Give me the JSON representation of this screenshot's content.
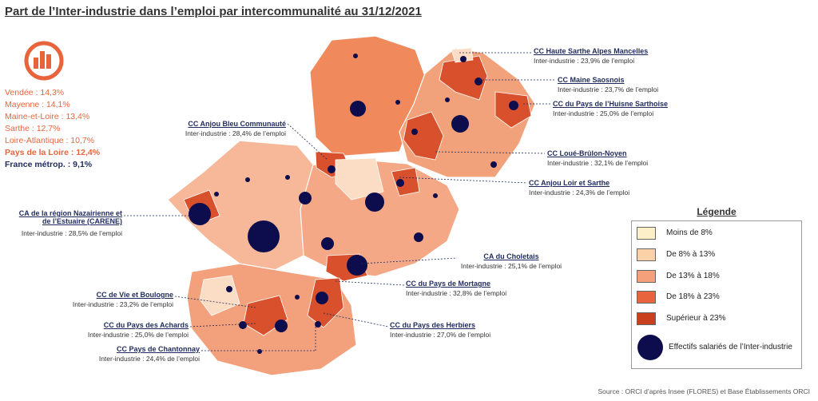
{
  "title": "Part de l’Inter-industrie dans l’emploi par intercommunalité au 31/12/2021",
  "stats": [
    "Vendée : 14,3%",
    "Mayenne : 14,1%",
    "Maine-et-Loire : 13,4%",
    "Sarthe : 12,7%",
    "Loire-Atlantique : 10,7%",
    "Pays de la Loire : 12,4%",
    "France métrop. : 9,1%"
  ],
  "callouts": [
    {
      "name": "CC Haute Sarthe Alpes Mancelles",
      "detail": "Inter-industrie : 23,9% de l’emploi"
    },
    {
      "name": "CC Maine Saosnois",
      "detail": "Inter-industrie : 23,7% de l’emploi"
    },
    {
      "name": "CC du Pays de l’Huisne Sarthoise",
      "detail": "Inter-industrie : 25,0% de l’emploi"
    },
    {
      "name": "CC Loué-Brûlon-Noyen",
      "detail": "Inter-industrie : 32,1% de l’emploi"
    },
    {
      "name": "CC Anjou Loir et Sarthe",
      "detail": "Inter-industrie : 24,3% de l’emploi"
    },
    {
      "name": "CC Anjou Bleu Communauté",
      "detail": "Inter-industrie : 28,4% de l’emploi"
    },
    {
      "name": "CA de la région Nazairienne et de l’Estuaire (CARENE)",
      "detail": "Inter-industrie : 28,5% de l’emploi"
    },
    {
      "name": "CA du Choletais",
      "detail": "Inter-industrie : 25,1% de l’emploi"
    },
    {
      "name": "CC du Pays de Mortagne",
      "detail": "Inter-industrie : 32,8% de l’emploi"
    },
    {
      "name": "CC de Vie et Boulogne",
      "detail": "Inter-industrie : 23,2% de l’emploi"
    },
    {
      "name": "CC du Pays des Achards",
      "detail": "Inter-industrie : 25,0% de l’emploi"
    },
    {
      "name": "CC Pays de Chantonnay",
      "detail": "Inter-industrie : 24,4% de l’emploi"
    },
    {
      "name": "CC du Pays des Herbiers",
      "detail": "Inter-industrie : 27,0% de l’emploi"
    }
  ],
  "legend": {
    "title": "Légende",
    "items": [
      "Moins de 8%",
      "De 8% à 13%",
      "De 13% à 18%",
      "De 18% à 23%",
      "Supérieur à 23%",
      "Effectifs salariés de l’Inter-industrie"
    ]
  },
  "source": "Source : ORCI d’après Insee (FLORES) et Base Établissements ORCI"
}
